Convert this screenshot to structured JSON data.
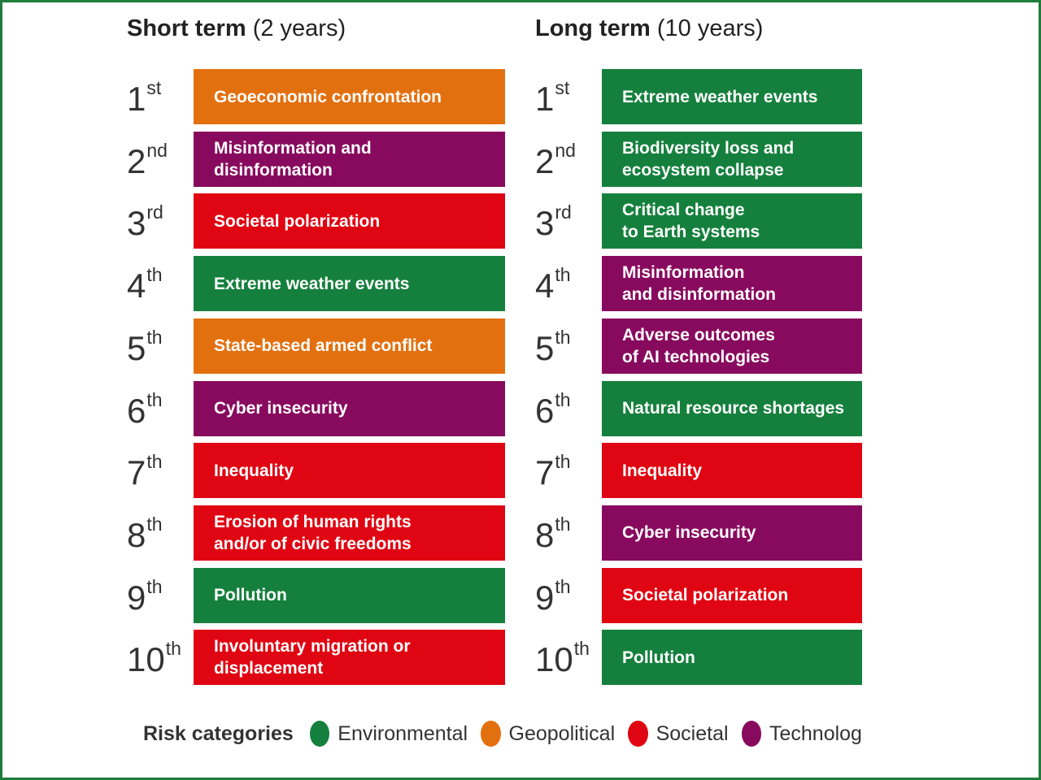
{
  "columns": [
    {
      "title_bold": "Short term",
      "title_rest": "(2 years)",
      "rows": [
        {
          "rank": "1",
          "suffix": "st",
          "label": "Geoeconomic confrontation",
          "color": "#e3700f"
        },
        {
          "rank": "2",
          "suffix": "nd",
          "label": "Misinformation and\ndisinformation",
          "color": "#880a5e"
        },
        {
          "rank": "3",
          "suffix": "rd",
          "label": "Societal polarization",
          "color": "#e00512"
        },
        {
          "rank": "4",
          "suffix": "th",
          "label": "Extreme weather events",
          "color": "#15803d"
        },
        {
          "rank": "5",
          "suffix": "th",
          "label": "State-based armed conflict",
          "color": "#e3700f"
        },
        {
          "rank": "6",
          "suffix": "th",
          "label": "Cyber insecurity",
          "color": "#880a5e"
        },
        {
          "rank": "7",
          "suffix": "th",
          "label": "Inequality",
          "color": "#e00512"
        },
        {
          "rank": "8",
          "suffix": "th",
          "label": "Erosion of human rights\nand/or of civic freedoms",
          "color": "#e00512"
        },
        {
          "rank": "9",
          "suffix": "th",
          "label": "Pollution",
          "color": "#15803d"
        },
        {
          "rank": "10",
          "suffix": "th",
          "label": "Involuntary migration or\ndisplacement",
          "color": "#e00512"
        }
      ]
    },
    {
      "title_bold": "Long term",
      "title_rest": "(10 years)",
      "rows": [
        {
          "rank": "1",
          "suffix": "st",
          "label": "Extreme weather events",
          "color": "#15803d"
        },
        {
          "rank": "2",
          "suffix": "nd",
          "label": "Biodiversity loss and\necosystem collapse",
          "color": "#15803d"
        },
        {
          "rank": "3",
          "suffix": "rd",
          "label": "Critical change\nto Earth systems",
          "color": "#15803d"
        },
        {
          "rank": "4",
          "suffix": "th",
          "label": "Misinformation\nand disinformation",
          "color": "#880a5e"
        },
        {
          "rank": "5",
          "suffix": "th",
          "label": "Adverse outcomes\nof AI technologies",
          "color": "#880a5e"
        },
        {
          "rank": "6",
          "suffix": "th",
          "label": "Natural resource shortages",
          "color": "#15803d"
        },
        {
          "rank": "7",
          "suffix": "th",
          "label": "Inequality",
          "color": "#e00512"
        },
        {
          "rank": "8",
          "suffix": "th",
          "label": "Cyber insecurity",
          "color": "#880a5e"
        },
        {
          "rank": "9",
          "suffix": "th",
          "label": "Societal polarization",
          "color": "#e00512"
        },
        {
          "rank": "10",
          "suffix": "th",
          "label": "Pollution",
          "color": "#15803d"
        }
      ]
    }
  ],
  "legend": {
    "title": "Risk categories",
    "items": [
      {
        "label": "Environmental",
        "color": "#15803d"
      },
      {
        "label": "Geopolitical",
        "color": "#e3700f"
      },
      {
        "label": "Societal",
        "color": "#e00512"
      },
      {
        "label": "Technolog",
        "color": "#880a5e"
      }
    ]
  }
}
